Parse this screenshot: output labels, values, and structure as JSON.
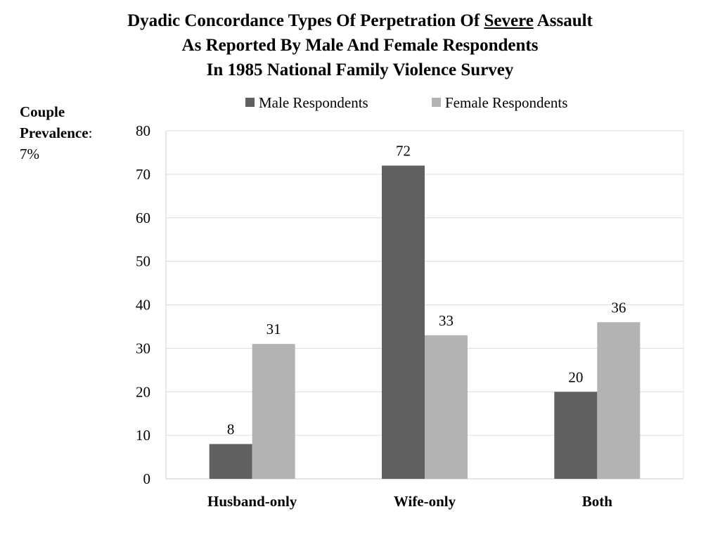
{
  "title": {
    "line1_pre": "Dyadic Concordance Types Of Perpetration Of ",
    "line1_underlined": "Severe",
    "line1_post": " Assault",
    "line2": "As Reported By Male And Female Respondents",
    "line3": "In 1985 National Family Violence Survey"
  },
  "side_note": {
    "line1": "Couple",
    "line2": "Prevalence",
    "line2_suffix": ":",
    "line3": "7%"
  },
  "chart_data": {
    "type": "bar",
    "categories": [
      "Husband-only",
      "Wife-only",
      "Both"
    ],
    "series": [
      {
        "name": "Male Respondents",
        "values": [
          8,
          72,
          20
        ],
        "color": "#606060"
      },
      {
        "name": "Female Respondents",
        "values": [
          31,
          33,
          36
        ],
        "color": "#b3b3b3"
      }
    ],
    "ylim": [
      0,
      80
    ],
    "yticks": [
      0,
      10,
      20,
      30,
      40,
      50,
      60,
      70,
      80
    ],
    "grid": true,
    "legend": "top-center",
    "xlabel": "",
    "ylabel": ""
  }
}
